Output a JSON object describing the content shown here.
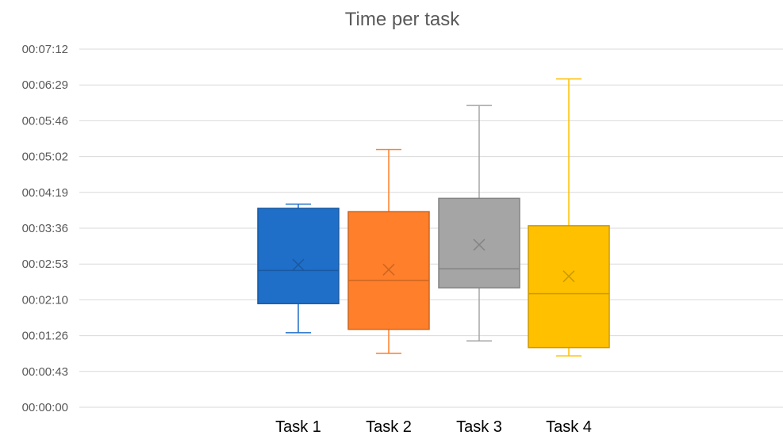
{
  "chart_data": {
    "type": "box",
    "title": "Time per task",
    "xlabel": "",
    "ylabel": "",
    "y_tick_labels": [
      "00:00:00",
      "00:00:43",
      "00:01:26",
      "00:02:10",
      "00:02:53",
      "00:03:36",
      "00:04:19",
      "00:05:02",
      "00:05:46",
      "00:06:29",
      "00:07:12"
    ],
    "ylim_seconds": [
      0,
      432
    ],
    "y_unit": "seconds (labels in hh:mm:ss)",
    "grid": true,
    "categories": [
      "Task 1",
      "Task 2",
      "Task 3",
      "Task 4"
    ],
    "series": [
      {
        "category": "Task 1",
        "color": "#1f6fc9",
        "min": 90,
        "q1": 125,
        "median": 165,
        "q3": 240,
        "max": 245,
        "mean": 172
      },
      {
        "category": "Task 2",
        "color": "#ff7f2a",
        "min": 65,
        "q1": 94,
        "median": 153,
        "q3": 236,
        "max": 311,
        "mean": 166
      },
      {
        "category": "Task 3",
        "color": "#a5a5a5",
        "min": 80,
        "q1": 144,
        "median": 167,
        "q3": 252,
        "max": 364,
        "mean": 196
      },
      {
        "category": "Task 4",
        "color": "#ffc000",
        "min": 62,
        "q1": 72,
        "median": 137,
        "q3": 219,
        "max": 396,
        "mean": 158
      }
    ]
  }
}
